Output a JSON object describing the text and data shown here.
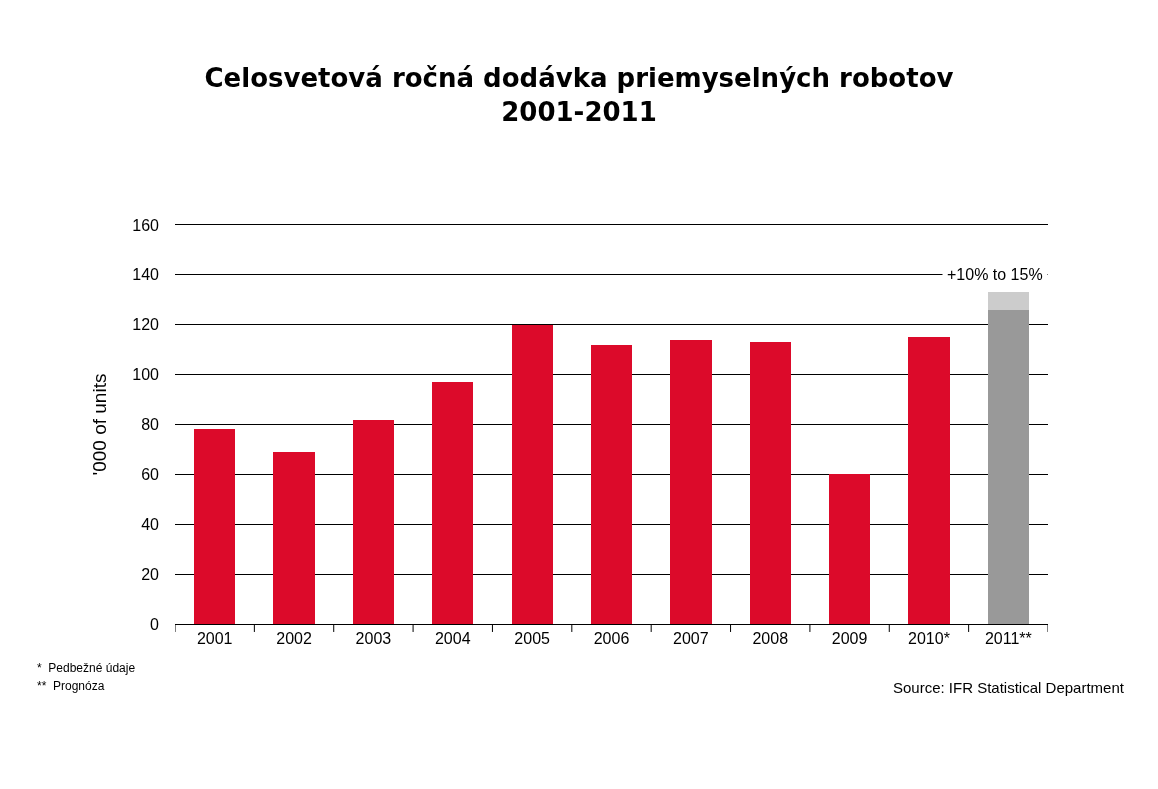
{
  "chart_data": {
    "type": "bar",
    "title": "Celosvetová ročná dodávka priemyselných robotov\n2001-2011",
    "ylabel": "'000 of units",
    "categories": [
      "2001",
      "2002",
      "2003",
      "2004",
      "2005",
      "2006",
      "2007",
      "2008",
      "2009",
      "2010*",
      "2011**"
    ],
    "stacked": true,
    "series": [
      {
        "colors": [
          "#dc0a2a",
          "#dc0a2a",
          "#dc0a2a",
          "#dc0a2a",
          "#dc0a2a",
          "#dc0a2a",
          "#dc0a2a",
          "#dc0a2a",
          "#dc0a2a",
          "#dc0a2a",
          "#999999"
        ],
        "values": [
          78,
          69,
          82,
          97,
          120,
          112,
          114,
          113,
          60,
          115,
          126
        ]
      },
      {
        "color": "#cccccc",
        "values": [
          null,
          null,
          null,
          null,
          null,
          null,
          null,
          null,
          null,
          null,
          7
        ]
      }
    ],
    "ylim": [
      0,
      160
    ],
    "yticks": [
      0,
      20,
      40,
      60,
      80,
      100,
      120,
      140,
      160
    ],
    "grid": "y",
    "annotations": [
      "+10% to 15%",
      "*  Pedbežné údaje",
      "**  Prognóza",
      "Source: IFR Statistical Department"
    ]
  }
}
